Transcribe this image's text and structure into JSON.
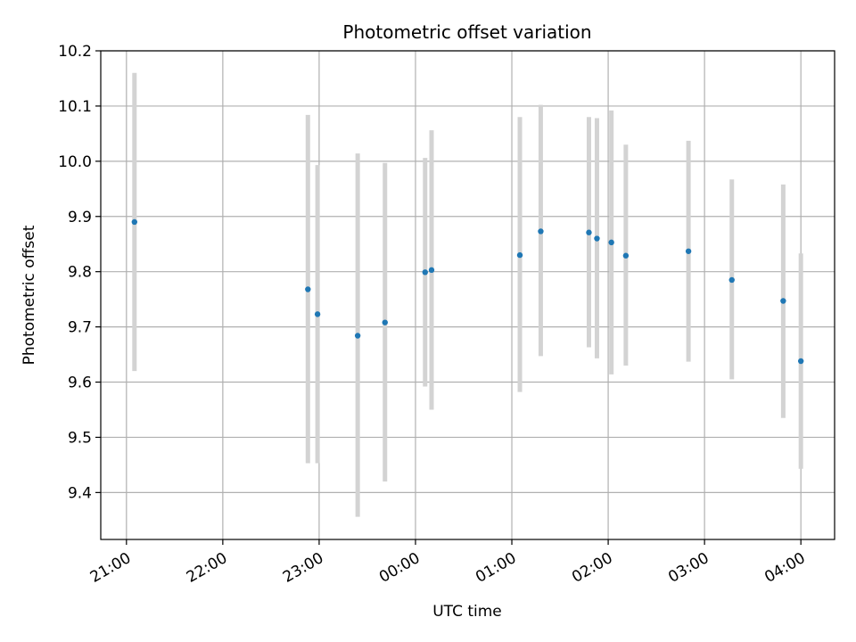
{
  "chart_data": {
    "type": "scatter",
    "title": "Photometric offset variation",
    "xlabel": "UTC time",
    "ylabel": "Photometric offset",
    "x_ticks": [
      "21:00",
      "22:00",
      "23:00",
      "00:00",
      "01:00",
      "02:00",
      "03:00",
      "04:00"
    ],
    "y_ticks": [
      "9.4",
      "9.5",
      "9.6",
      "9.7",
      "9.8",
      "9.9",
      "10.0",
      "10.1",
      "10.2"
    ],
    "xlim": [
      "20:44",
      "04:21"
    ],
    "ylim": [
      9.315,
      10.2
    ],
    "grid": true,
    "colors": {
      "point": "#1f77b4",
      "errorbar": "#d3d3d3",
      "grid": "#b0b0b0"
    },
    "points": [
      {
        "x": "21:05",
        "y": 9.89,
        "ylow": 9.62,
        "yhigh": 10.16
      },
      {
        "x": "22:53",
        "y": 9.768,
        "ylow": 9.453,
        "yhigh": 10.084
      },
      {
        "x": "22:59",
        "y": 9.723,
        "ylow": 9.453,
        "yhigh": 9.993
      },
      {
        "x": "23:24",
        "y": 9.684,
        "ylow": 9.356,
        "yhigh": 10.014
      },
      {
        "x": "23:41",
        "y": 9.708,
        "ylow": 9.42,
        "yhigh": 9.997
      },
      {
        "x": "00:06",
        "y": 9.799,
        "ylow": 9.592,
        "yhigh": 10.006
      },
      {
        "x": "00:10",
        "y": 9.803,
        "ylow": 9.55,
        "yhigh": 10.056
      },
      {
        "x": "01:05",
        "y": 9.83,
        "ylow": 9.582,
        "yhigh": 10.08
      },
      {
        "x": "01:18",
        "y": 9.873,
        "ylow": 9.647,
        "yhigh": 10.102
      },
      {
        "x": "01:48",
        "y": 9.871,
        "ylow": 9.663,
        "yhigh": 10.08
      },
      {
        "x": "01:53",
        "y": 9.86,
        "ylow": 9.643,
        "yhigh": 10.078
      },
      {
        "x": "02:02",
        "y": 9.853,
        "ylow": 9.614,
        "yhigh": 10.092
      },
      {
        "x": "02:11",
        "y": 9.829,
        "ylow": 9.63,
        "yhigh": 10.03
      },
      {
        "x": "02:50",
        "y": 9.837,
        "ylow": 9.637,
        "yhigh": 10.037
      },
      {
        "x": "03:17",
        "y": 9.785,
        "ylow": 9.605,
        "yhigh": 9.967
      },
      {
        "x": "03:49",
        "y": 9.747,
        "ylow": 9.535,
        "yhigh": 9.958
      },
      {
        "x": "04:00",
        "y": 9.638,
        "ylow": 9.443,
        "yhigh": 9.833
      }
    ]
  }
}
